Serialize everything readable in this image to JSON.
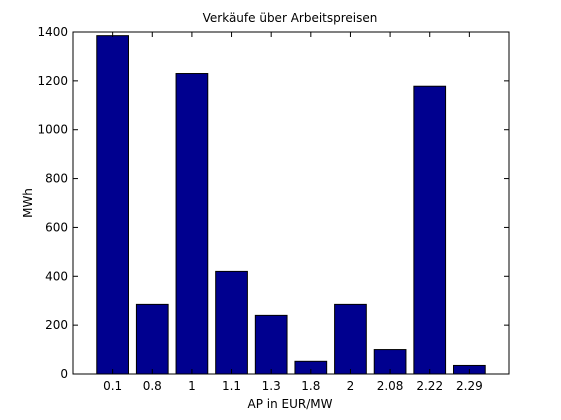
{
  "chart_data": {
    "type": "bar",
    "title": "Verkäufe über Arbeitspreisen",
    "xlabel": "AP in EUR/MW",
    "ylabel": "MWh",
    "categories": [
      "0.1",
      "0.8",
      "1",
      "1.1",
      "1.3",
      "1.8",
      "2",
      "2.08",
      "2.22",
      "2.29"
    ],
    "values": [
      1385,
      285,
      1230,
      420,
      240,
      52,
      285,
      100,
      1178,
      35
    ],
    "ylim": [
      0,
      1400
    ],
    "yticks": [
      0,
      200,
      400,
      600,
      800,
      1000,
      1200,
      1400
    ],
    "grid": false,
    "colors": {
      "bar_fill": "#00008F",
      "bar_edge": "#000000",
      "axes": "#000000",
      "background": "#ffffff"
    }
  }
}
